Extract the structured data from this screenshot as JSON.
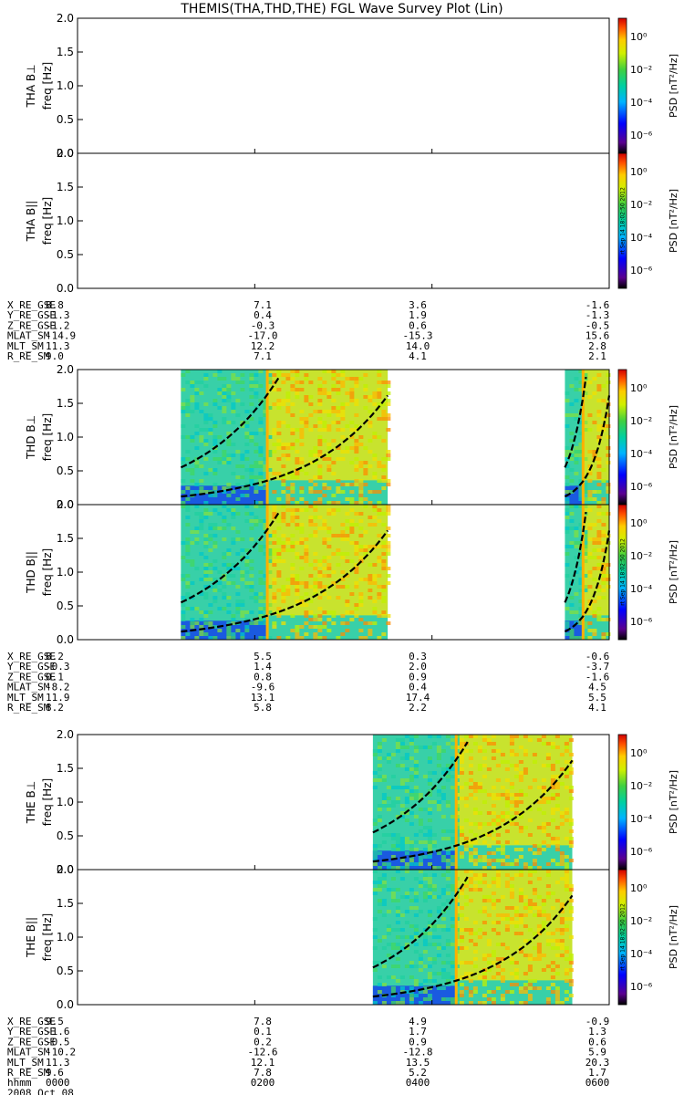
{
  "title": "THEMIS(THA,THD,THE) FGL Wave Survey Plot (Lin)",
  "colorbar": {
    "label": "PSD [nT²/Hz]",
    "ticks": [
      "10⁰",
      "10⁻²",
      "10⁻⁴",
      "10⁻⁶"
    ],
    "stamp": "rt Sep 14 18:02:50 2012"
  },
  "time_axis": {
    "label": "hhmm",
    "date": "2008 Oct 08",
    "ticks": [
      "0000",
      "0200",
      "0400",
      "0600"
    ]
  },
  "chart_data": [
    {
      "type": "heatmap",
      "probe": "THA",
      "panels": [
        {
          "ylabel": "THA B⊥",
          "yunit": "freq [Hz]",
          "ylim": [
            0,
            2
          ],
          "yticks": [
            "0.0",
            "0.5",
            "1.0",
            "1.5",
            "2.0"
          ],
          "data_intervals_hhmm": []
        },
        {
          "ylabel": "THA B||",
          "yunit": "freq [Hz]",
          "ylim": [
            0,
            2
          ],
          "yticks": [
            "0.0",
            "0.5",
            "1.0",
            "1.5",
            "2.0"
          ],
          "data_intervals_hhmm": []
        }
      ],
      "orbit_table": [
        {
          "name": "X_RE_GSE",
          "values": [
            "8.8",
            "7.1",
            "3.6",
            "-1.6"
          ]
        },
        {
          "name": "Y_RE_GSE",
          "values": [
            "-1.3",
            "0.4",
            "1.9",
            "-1.3"
          ]
        },
        {
          "name": "Z_RE_GSE",
          "values": [
            "-1.2",
            "-0.3",
            "0.6",
            "-0.5"
          ]
        },
        {
          "name": "MLAT_SM",
          "values": [
            "-14.9",
            "-17.0",
            "-15.3",
            "15.6"
          ]
        },
        {
          "name": "MLT_SM",
          "values": [
            "11.3",
            "12.2",
            "14.0",
            "2.8"
          ]
        },
        {
          "name": "R_RE_SM",
          "values": [
            "9.0",
            "7.1",
            "4.1",
            "2.1"
          ]
        }
      ]
    },
    {
      "type": "heatmap",
      "probe": "THD",
      "panels": [
        {
          "ylabel": "THD B⊥",
          "yunit": "freq [Hz]",
          "ylim": [
            0,
            2
          ],
          "yticks": [
            "0.0",
            "0.5",
            "1.0",
            "1.5",
            "2.0"
          ],
          "data_intervals_hhmm": [
            [
              110,
              330
            ],
            [
              530,
              600
            ]
          ]
        },
        {
          "ylabel": "THD B||",
          "yunit": "freq [Hz]",
          "ylim": [
            0,
            2
          ],
          "yticks": [
            "0.0",
            "0.5",
            "1.0",
            "1.5",
            "2.0"
          ],
          "data_intervals_hhmm": [
            [
              110,
              330
            ],
            [
              530,
              600
            ]
          ]
        }
      ],
      "orbit_table": [
        {
          "name": "X_RE_GSE",
          "values": [
            "8.2",
            "5.5",
            "0.3",
            "-0.6"
          ]
        },
        {
          "name": "Y_RE_GSE",
          "values": [
            "-0.3",
            "1.4",
            "2.0",
            "-3.7"
          ]
        },
        {
          "name": "Z_RE_GSE",
          "values": [
            "0.1",
            "0.8",
            "0.9",
            "-1.6"
          ]
        },
        {
          "name": "MLAT_SM",
          "values": [
            "-8.2",
            "-9.6",
            "0.4",
            "4.5"
          ]
        },
        {
          "name": "MLT_SM",
          "values": [
            "11.9",
            "13.1",
            "17.4",
            "5.5"
          ]
        },
        {
          "name": "R_RE_SM",
          "values": [
            "8.2",
            "5.8",
            "2.2",
            "4.1"
          ]
        }
      ]
    },
    {
      "type": "heatmap",
      "probe": "THE",
      "panels": [
        {
          "ylabel": "THE B⊥",
          "yunit": "freq [Hz]",
          "ylim": [
            0,
            2
          ],
          "yticks": [
            "0.0",
            "0.5",
            "1.0",
            "1.5",
            "2.0"
          ],
          "data_intervals_hhmm": [
            [
              320,
              535
            ]
          ]
        },
        {
          "ylabel": "THE B||",
          "yunit": "freq [Hz]",
          "ylim": [
            0,
            2
          ],
          "yticks": [
            "0.0",
            "0.5",
            "1.0",
            "1.5",
            "2.0"
          ],
          "data_intervals_hhmm": [
            [
              320,
              535
            ]
          ]
        }
      ],
      "orbit_table": [
        {
          "name": "X_RE_GSE",
          "values": [
            "9.5",
            "7.8",
            "4.9",
            "-0.9"
          ]
        },
        {
          "name": "Y_RE_GSE",
          "values": [
            "-1.6",
            "0.1",
            "1.7",
            "1.3"
          ]
        },
        {
          "name": "Z_RE_GSE",
          "values": [
            "-0.5",
            "0.2",
            "0.9",
            "0.6"
          ]
        },
        {
          "name": "MLAT_SM",
          "values": [
            "-10.2",
            "-12.6",
            "-12.8",
            "5.9"
          ]
        },
        {
          "name": "MLT_SM",
          "values": [
            "11.3",
            "12.1",
            "13.5",
            "20.3"
          ]
        },
        {
          "name": "R_RE_SM",
          "values": [
            "9.6",
            "7.8",
            "5.2",
            "1.7"
          ]
        }
      ]
    }
  ]
}
